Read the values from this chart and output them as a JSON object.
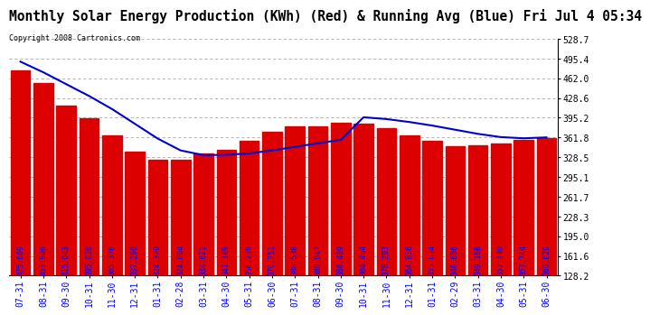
{
  "title": "Monthly Solar Energy Production (KWh) (Red) & Running Avg (Blue) Fri Jul 4 05:34",
  "copyright": "Copyright 2008 Cartronics.com",
  "categories": [
    "07-31",
    "08-31",
    "09-30",
    "10-31",
    "11-30",
    "12-31",
    "01-31",
    "02-28",
    "03-31",
    "04-30",
    "05-31",
    "06-30",
    "07-31",
    "08-31",
    "09-30",
    "10-31",
    "11-30",
    "12-31",
    "01-31",
    "02-29",
    "03-31",
    "04-30",
    "05-31",
    "06-30"
  ],
  "bar_values": [
    475.669,
    453.908,
    415.043,
    395.03,
    365.336,
    337.29,
    324.37,
    324.004,
    334.621,
    341.189,
    356.239,
    370.751,
    380.538,
    380.047,
    386.409,
    384.464,
    378.293,
    364.836,
    355.654,
    346.606,
    349.168,
    352.19,
    357.744,
    360.62
  ],
  "running_avg": [
    490.0,
    472.0,
    452.0,
    432.0,
    410.0,
    385.0,
    360.0,
    340.0,
    332.0,
    332.5,
    335.0,
    340.0,
    346.0,
    352.0,
    358.0,
    396.0,
    393.0,
    388.0,
    382.0,
    375.0,
    368.0,
    362.5,
    360.5,
    362.0
  ],
  "bar_color": "#dd0000",
  "line_color": "#0000cc",
  "background_color": "#ffffff",
  "grid_color": "#aaaaaa",
  "ylabel_right": [
    "528.7",
    "495.4",
    "462.0",
    "428.6",
    "395.2",
    "361.8",
    "328.5",
    "295.1",
    "261.7",
    "228.3",
    "195.0",
    "161.6",
    "128.2"
  ],
  "ymin": 128.2,
  "ymax": 528.7,
  "title_fontsize": 10.5,
  "tick_fontsize": 7,
  "bar_label_fontsize": 5.8,
  "copyright_fontsize": 6.0
}
